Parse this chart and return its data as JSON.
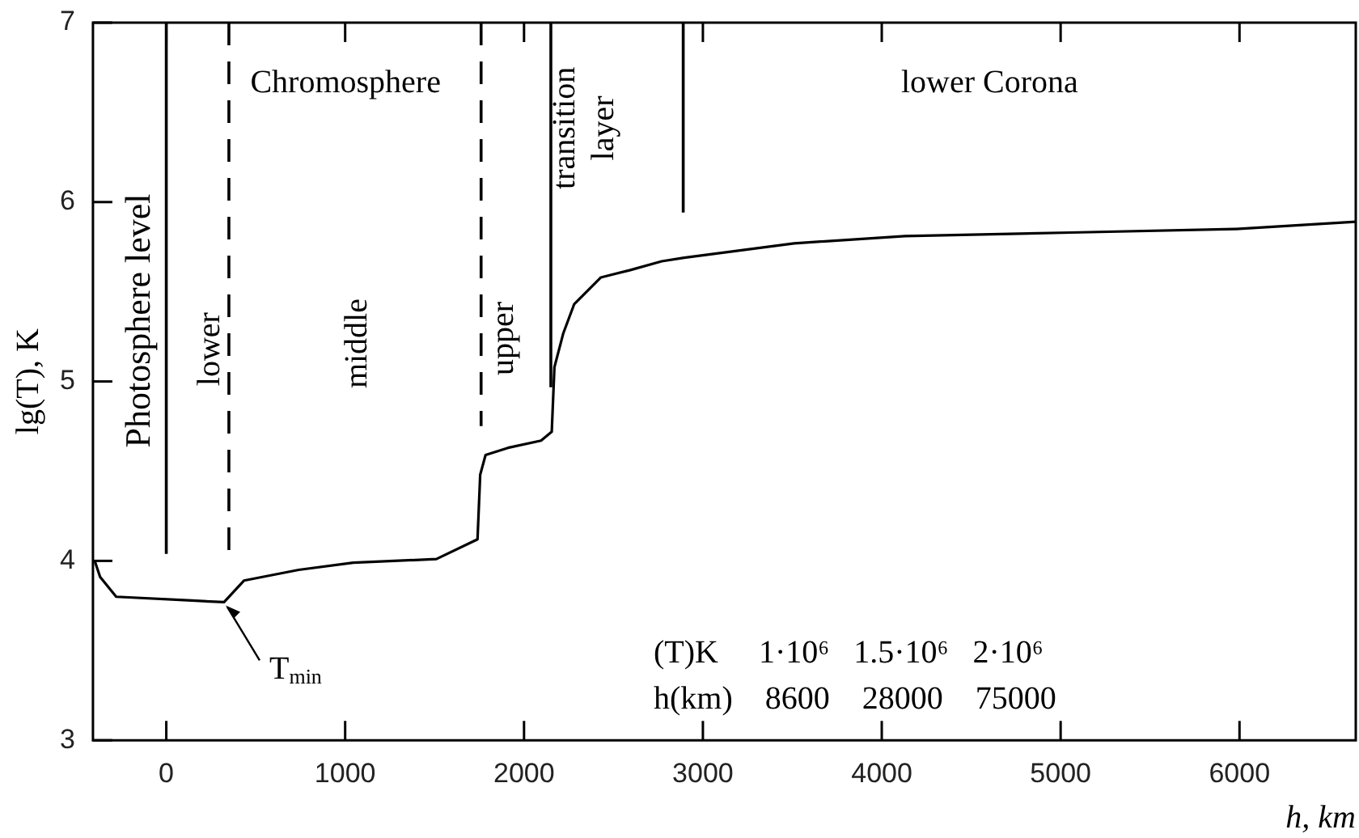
{
  "chart_data": {
    "type": "line",
    "xlabel": "h, km",
    "ylabel": "lg(T), K",
    "xlim": [
      -410,
      6650
    ],
    "xticks": [
      0,
      1000,
      2000,
      3000,
      4000,
      5000,
      6000
    ],
    "ylim": [
      3,
      7
    ],
    "yticks": [
      3,
      4,
      5,
      6,
      7
    ],
    "grid": false,
    "legend": false,
    "marker": "none",
    "line_style": "solid",
    "series": [
      {
        "color": "#000000",
        "x": [
          -400,
          -370,
          -280,
          120,
          323,
          434,
          740,
          1045,
          1510,
          1740,
          1755,
          1785,
          1910,
          2095,
          2155,
          2170,
          2220,
          2280,
          2430,
          2590,
          2770,
          2895,
          3510,
          4130,
          5055,
          5980,
          6650
        ],
        "values": [
          4.0,
          3.91,
          3.8,
          3.78,
          3.77,
          3.89,
          3.95,
          3.99,
          4.01,
          4.12,
          4.48,
          4.59,
          4.63,
          4.67,
          4.72,
          5.08,
          5.27,
          5.43,
          5.58,
          5.62,
          5.67,
          5.69,
          5.77,
          5.81,
          5.83,
          5.85,
          5.89
        ]
      }
    ],
    "ref_lines": [
      {
        "axis": "x",
        "value": 0,
        "label": "Photosphere level",
        "line_style": "solid"
      },
      {
        "axis": "x",
        "value": 350,
        "line_style": "dashed"
      },
      {
        "axis": "x",
        "value": 1760,
        "line_style": "dashed"
      },
      {
        "axis": "x",
        "value": 2150,
        "line_style": "solid"
      },
      {
        "axis": "x",
        "value": 2890,
        "line_style": "solid"
      }
    ],
    "annotations": [
      "Chromosphere",
      "lower",
      "middle",
      "upper",
      "transition layer",
      "lower Corona",
      {
        "text": "T$_{min}$",
        "x": 323,
        "y": 3.77
      },
      "(T)K     1·10⁶   1.5·10⁶   2·10⁶",
      "h(km)    8600    28000    75000"
    ]
  }
}
